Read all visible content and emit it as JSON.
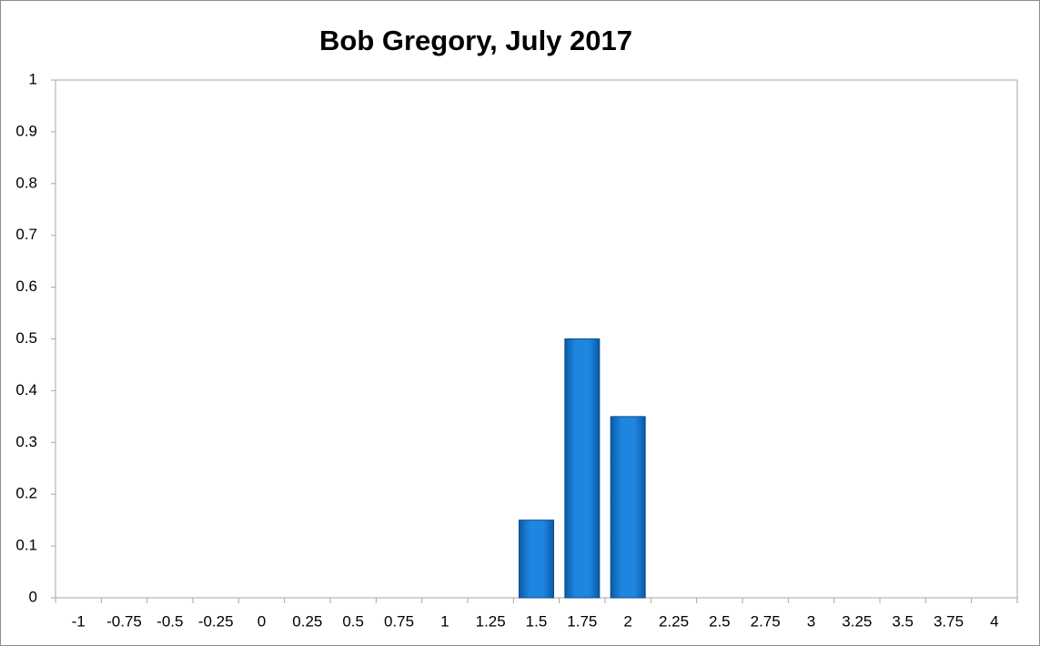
{
  "chart_data": {
    "type": "bar",
    "title": "Bob Gregory, July 2017",
    "categories": [
      "-1",
      "-0.75",
      "-0.5",
      "-0.25",
      "0",
      "0.25",
      "0.5",
      "0.75",
      "1",
      "1.25",
      "1.5",
      "1.75",
      "2",
      "2.25",
      "2.5",
      "2.75",
      "3",
      "3.25",
      "3.5",
      "3.75",
      "4"
    ],
    "values": [
      0,
      0,
      0,
      0,
      0,
      0,
      0,
      0,
      0,
      0,
      0.15,
      0.5,
      0.35,
      0,
      0,
      0,
      0,
      0,
      0,
      0,
      0
    ],
    "color": "#0a6fc8",
    "ylim": [
      0,
      1
    ],
    "yticks": [
      0,
      0.1,
      0.2,
      0.3,
      0.4,
      0.5,
      0.6,
      0.7,
      0.8,
      0.9,
      1
    ],
    "grid": false
  }
}
